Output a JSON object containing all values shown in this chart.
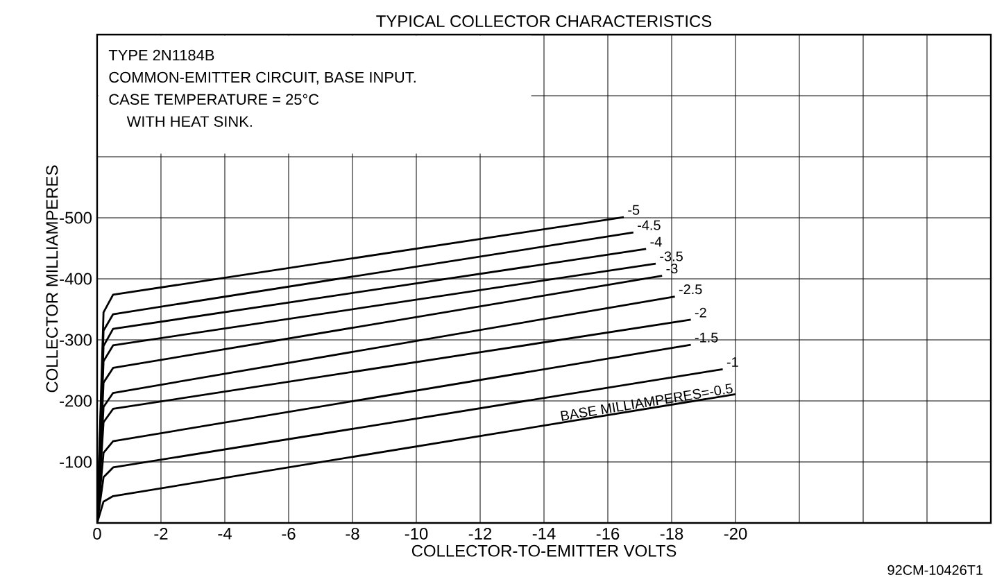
{
  "chart_data": {
    "type": "line",
    "title": "TYPICAL COLLECTOR CHARACTERISTICS",
    "xlabel": "COLLECTOR-TO-EMITTER VOLTS",
    "ylabel": "COLLECTOR MILLIAMPERES",
    "annotations": [
      "TYPE 2N1184B",
      "COMMON-EMITTER CIRCUIT, BASE INPUT.",
      "CASE TEMPERATURE = 25°C",
      "WITH HEAT SINK.",
      "92CM-10426T1"
    ],
    "series": [
      {
        "name": "BASE MILLIAMPERES=-0.5",
        "color": "#000000",
        "x": [
          0,
          -0.2,
          -0.5,
          -20
        ],
        "values": [
          0,
          -35,
          -44,
          -211
        ]
      },
      {
        "name": "-1",
        "color": "#000000",
        "x": [
          0,
          -0.2,
          -0.5,
          -19.6
        ],
        "values": [
          0,
          -75,
          -91,
          -252
        ]
      },
      {
        "name": "-1.5",
        "color": "#000000",
        "x": [
          0,
          -0.2,
          -0.5,
          -18.6
        ],
        "values": [
          0,
          -115,
          -134,
          -292
        ]
      },
      {
        "name": "-2",
        "color": "#000000",
        "x": [
          0,
          -0.2,
          -0.5,
          -18.6
        ],
        "values": [
          0,
          -165,
          -187,
          -333
        ]
      },
      {
        "name": "-2.5",
        "color": "#000000",
        "x": [
          0,
          -0.2,
          -0.5,
          -18.1
        ],
        "values": [
          0,
          -190,
          -213,
          -371
        ]
      },
      {
        "name": "-3",
        "color": "#000000",
        "x": [
          0,
          -0.2,
          -0.5,
          -17.7
        ],
        "values": [
          0,
          -230,
          -254,
          -405
        ]
      },
      {
        "name": "-3.5",
        "color": "#000000",
        "x": [
          0,
          -0.2,
          -0.5,
          -17.5
        ],
        "values": [
          0,
          -265,
          -291,
          -425
        ]
      },
      {
        "name": "-4",
        "color": "#000000",
        "x": [
          0,
          -0.2,
          -0.5,
          -17.2
        ],
        "values": [
          0,
          -290,
          -318,
          -449
        ]
      },
      {
        "name": "-4.5",
        "color": "#000000",
        "x": [
          0,
          -0.2,
          -0.5,
          -16.8
        ],
        "values": [
          0,
          -315,
          -342,
          -476
        ]
      },
      {
        "name": "-5",
        "color": "#000000",
        "x": [
          0,
          -0.2,
          -0.5,
          -16.5
        ],
        "values": [
          0,
          -345,
          -374,
          -501
        ]
      }
    ],
    "xlim": [
      0,
      -28
    ],
    "xticks": [
      0,
      -2,
      -4,
      -6,
      -8,
      -10,
      -12,
      -14,
      -16,
      -18,
      -20,
      {
        "value": -22,
        "label": null
      },
      {
        "value": -24,
        "label": null
      },
      {
        "value": -26,
        "label": null
      },
      {
        "value": -28,
        "label": null
      }
    ],
    "ylim": [
      0,
      -800
    ],
    "yticks": [
      {
        "value": 0,
        "label": null
      },
      -100,
      -200,
      -300,
      -400,
      -500,
      {
        "value": -600,
        "label": null
      },
      {
        "value": -700,
        "label": null
      },
      {
        "value": -800,
        "label": null
      }
    ],
    "grid": true,
    "marker": "none",
    "line_style": "solid"
  }
}
